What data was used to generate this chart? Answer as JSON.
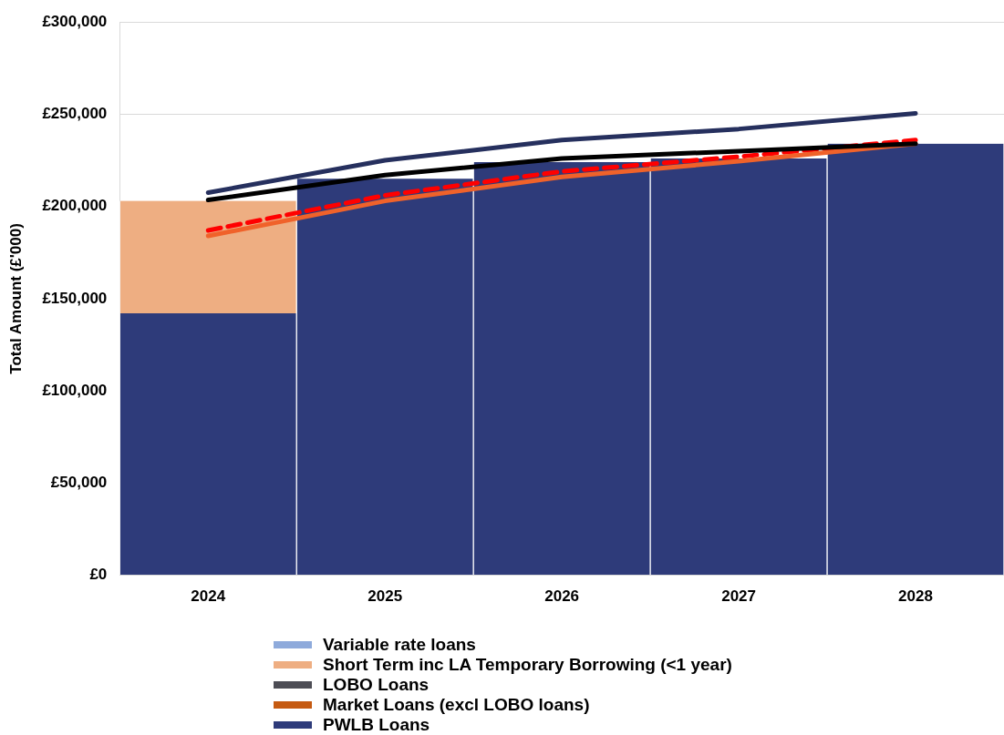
{
  "chart_data": {
    "type": "bar",
    "stacked": true,
    "ylabel": "Total Amount (£'000)",
    "categories": [
      "2024",
      "2025",
      "2026",
      "2027",
      "2028"
    ],
    "series": [
      {
        "name": "PWLB Loans",
        "color": "#2e3b7a",
        "values": [
          142000,
          215000,
          224000,
          226000,
          234000
        ]
      },
      {
        "name": "Market Loans (excl LOBO loans)",
        "color": "#c55a11",
        "values": [
          0,
          0,
          0,
          0,
          0
        ]
      },
      {
        "name": "LOBO Loans",
        "color": "#4d4d55",
        "values": [
          0,
          0,
          0,
          0,
          0
        ]
      },
      {
        "name": "Short Term inc LA Temporary Borrowing (<1 year)",
        "color": "#eeae82",
        "values": [
          61000,
          0,
          0,
          0,
          0
        ]
      },
      {
        "name": "Variable rate loans",
        "color": "#8eaadb",
        "values": [
          0,
          0,
          0,
          0,
          0
        ]
      },
      {
        "type": "line",
        "color": "#26305e",
        "values": [
          207500,
          225000,
          236000,
          242000,
          250500
        ]
      },
      {
        "type": "line",
        "color": "#000000",
        "values": [
          203500,
          217000,
          226000,
          230000,
          234000
        ]
      },
      {
        "type": "line",
        "color": "#f0622a",
        "values": [
          184000,
          203000,
          216000,
          224500,
          234000
        ]
      },
      {
        "type": "line",
        "color": "#ff0000",
        "line_style": "dashed",
        "values": [
          187000,
          206000,
          219000,
          227000,
          236000
        ]
      }
    ],
    "ylim": [
      0,
      300000
    ],
    "yticks": [
      {
        "value": 0,
        "label": "£0"
      },
      {
        "value": 50000,
        "label": "£50,000"
      },
      {
        "value": 100000,
        "label": "£100,000"
      },
      {
        "value": 150000,
        "label": "£150,000"
      },
      {
        "value": 200000,
        "label": "£200,000"
      },
      {
        "value": 250000,
        "label": "£250,000"
      },
      {
        "value": 300000,
        "label": "£300,000"
      }
    ],
    "grid": "y",
    "legend": "bottom",
    "marker": "none"
  }
}
